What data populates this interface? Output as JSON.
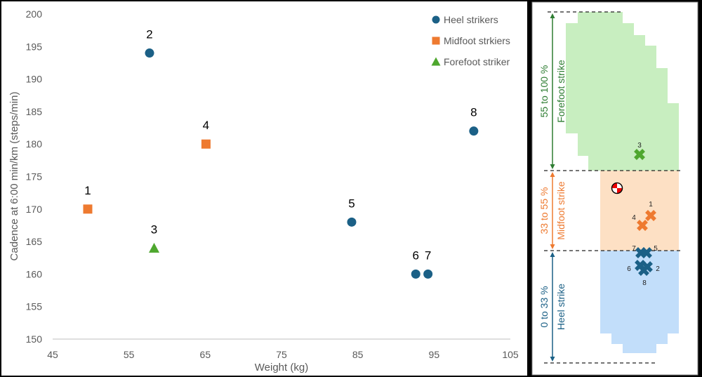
{
  "chart_data": {
    "type": "scatter",
    "xlabel": "Weight (kg)",
    "ylabel": "Cadence at 6:00 min/km (steps/min)",
    "xlim": [
      45,
      105
    ],
    "ylim": [
      150,
      200
    ],
    "xticks": [
      45,
      55,
      65,
      75,
      85,
      95,
      105
    ],
    "yticks": [
      150,
      155,
      160,
      165,
      170,
      175,
      180,
      185,
      190,
      195,
      200
    ],
    "grid": false,
    "legend_position": "top-right",
    "series": [
      {
        "name": "Heel strikers",
        "marker": "circle",
        "color": "#1b6086",
        "points": [
          {
            "label": "2",
            "x": 57.7,
            "y": 194
          },
          {
            "label": "5",
            "x": 84.2,
            "y": 168
          },
          {
            "label": "6",
            "x": 92.6,
            "y": 160
          },
          {
            "label": "7",
            "x": 94.2,
            "y": 160
          },
          {
            "label": "8",
            "x": 100.2,
            "y": 182
          }
        ]
      },
      {
        "name": "Midfoot strkiers",
        "marker": "square",
        "color": "#ee7a30",
        "points": [
          {
            "label": "1",
            "x": 49.6,
            "y": 170
          },
          {
            "label": "4",
            "x": 65.1,
            "y": 180
          }
        ]
      },
      {
        "name": "Forefoot striker",
        "marker": "triangle",
        "color": "#4ea72e",
        "points": [
          {
            "label": "3",
            "x": 58.3,
            "y": 164
          }
        ]
      }
    ]
  },
  "footprint": {
    "zones": [
      {
        "range": "55 to 100 %",
        "name": "Forefoot strike",
        "color": "#2e7d32",
        "fill": "#c8eec0"
      },
      {
        "range": "33 to 55 %",
        "name": "Midfoot strike",
        "color": "#ee7a30",
        "fill": "#fde0c4"
      },
      {
        "range": "0 to 33 %",
        "name": "Heel strike",
        "color": "#1b6086",
        "fill": "#c2defa"
      }
    ],
    "markers": [
      {
        "label": "3",
        "color": "#4ea72e"
      },
      {
        "label": "1",
        "color": "#ee7a30"
      },
      {
        "label": "4",
        "color": "#ee7a30"
      },
      {
        "label": "7",
        "color": "#1b6086"
      },
      {
        "label": "5",
        "color": "#1b6086"
      },
      {
        "label": "6",
        "color": "#1b6086"
      },
      {
        "label": "2",
        "color": "#1b6086"
      },
      {
        "label": "8",
        "color": "#1b6086"
      }
    ],
    "center_of_mass_icon": "center-of-mass-icon"
  }
}
